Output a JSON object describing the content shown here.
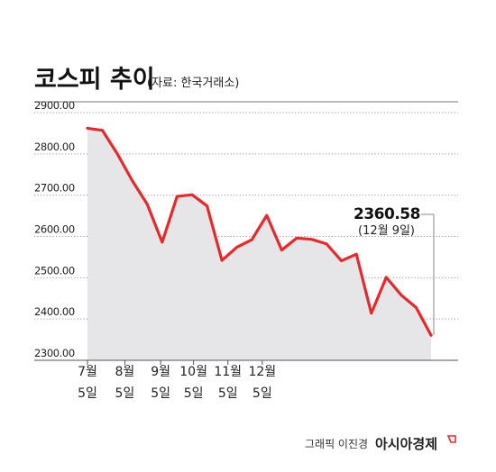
{
  "title": "코스피 추이",
  "source": "(자료: 한국거래소)",
  "chart_data": {
    "type": "area",
    "ylim": [
      2300,
      2900
    ],
    "yticks": [
      "2900.00",
      "2800.00",
      "2700.00",
      "2600.00",
      "2500.00",
      "2400.00",
      "2300.00"
    ],
    "xticks": [
      {
        "line1": "7월",
        "line2": "5일",
        "index": 0
      },
      {
        "line1": "8월",
        "line2": "5일",
        "index": 2.5
      },
      {
        "line1": "9월",
        "line2": "5일",
        "index": 4.9
      },
      {
        "line1": "10월",
        "line2": "5일",
        "index": 7.1
      },
      {
        "line1": "11월",
        "line2": "5일",
        "index": 9.4
      },
      {
        "line1": "12월",
        "line2": "5일",
        "index": 11.7
      }
    ],
    "values": [
      2862,
      2857,
      2800,
      2735,
      2678,
      2586,
      2697,
      2701,
      2674,
      2542,
      2574,
      2592,
      2651,
      2567,
      2596,
      2593,
      2582,
      2541,
      2557,
      2414,
      2501,
      2458,
      2428,
      2360.58
    ],
    "grid": true,
    "annotation": {
      "value": "2360.58",
      "date": "(12월 9일)"
    },
    "line_color": "#e8292c",
    "fill_color": "#e6e6e8"
  },
  "footer": {
    "credit": "그래픽 이진경",
    "brand": "아시아경제",
    "brand_mark_color": "#e8292c"
  }
}
